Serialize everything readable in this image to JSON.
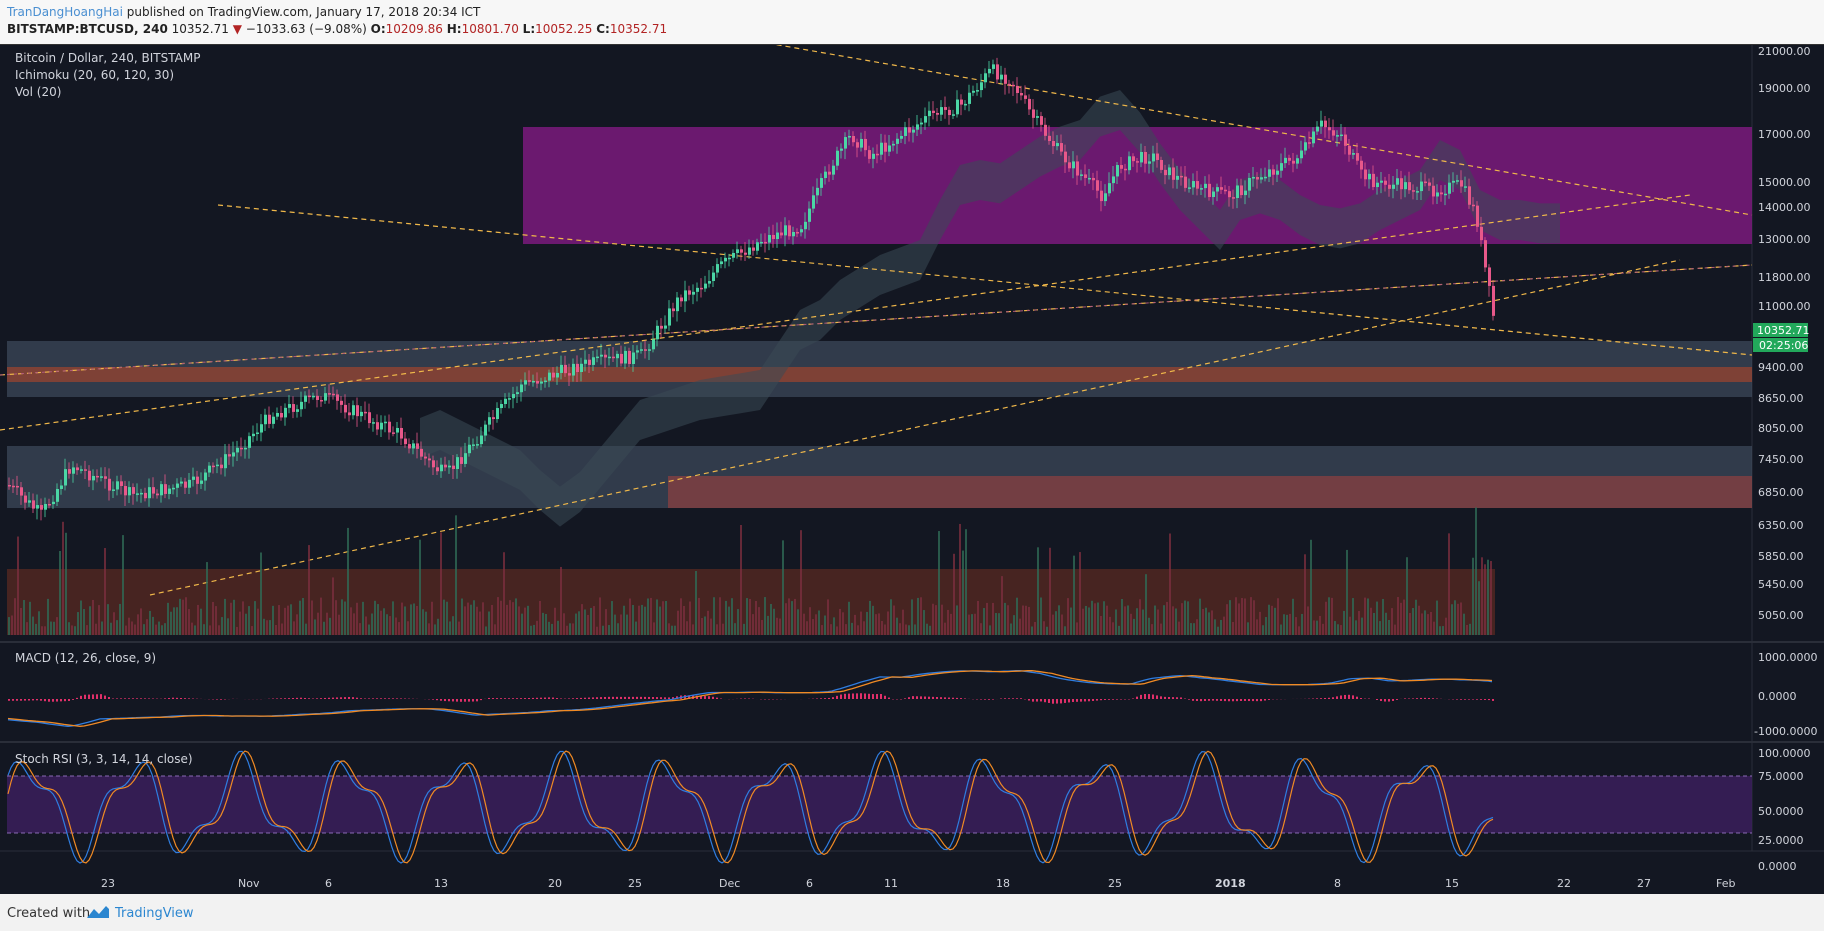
{
  "header": {
    "author": "TranDangHoangHai",
    "published": "published on TradingView.com, January 17, 2018 20:34 ICT",
    "symbol": "BITSTAMP:BTCUSD, 240",
    "last": "10352.71",
    "change": "−1033.63 (−9.08%)",
    "o_label": "O:",
    "o": "10209.86",
    "h_label": "H:",
    "h": "10801.70",
    "l_label": "L:",
    "l": "10052.25",
    "c_label": "C:",
    "c": "10352.71"
  },
  "main_pane": {
    "title": "Bitcoin / Dollar, 240, BITSTAMP",
    "indicator1": "Ichimoku (20, 60, 120, 30)",
    "indicator2": "Vol (20)",
    "price_labels": [
      "21000.00",
      "19000.00",
      "17000.00",
      "15000.00",
      "14000.00",
      "13000.00",
      "11800.00",
      "11000.00",
      "9400.00",
      "8650.00",
      "8050.00",
      "7450.00",
      "6850.00",
      "6350.00",
      "5850.00",
      "5450.00",
      "5050.00"
    ],
    "last_price_tag": "10352.71",
    "countdown_tag": "02:25:06"
  },
  "macd_pane": {
    "title": "MACD (12, 26, close, 9)",
    "labels": [
      "1000.0000",
      "0.0000",
      "-1000.0000"
    ]
  },
  "rsi_pane": {
    "title": "Stoch RSI (3, 3, 14, 14, close)",
    "labels": [
      "100.0000",
      "75.0000",
      "50.0000",
      "25.0000",
      "0.0000"
    ]
  },
  "time_axis": [
    "23",
    "Nov",
    "6",
    "13",
    "20",
    "25",
    "Dec",
    "6",
    "11",
    "18",
    "25",
    "2018",
    "8",
    "15",
    "22",
    "27",
    "Feb"
  ],
  "colors": {
    "background": "#131722",
    "up": "#4bd6a5",
    "down": "#e8588a",
    "resistance_zone": "#7b1a7c",
    "support_zone": "#4a5a6e",
    "red_zone": "#7a3838",
    "trendline": "#f0b84a"
  },
  "footer": {
    "created_with": "Created with",
    "brand": "TradingView"
  }
}
